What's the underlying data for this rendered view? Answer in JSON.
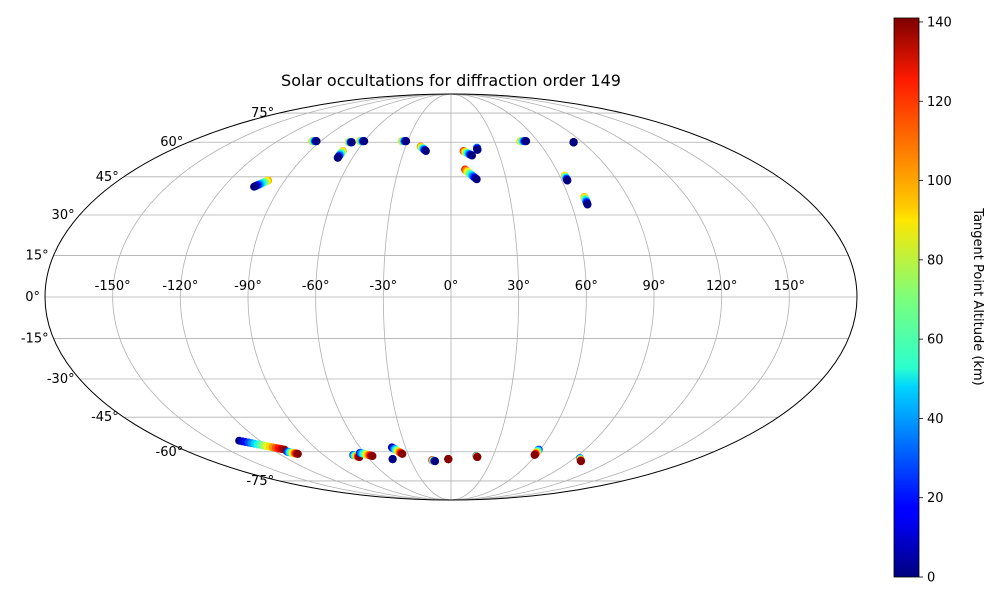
{
  "chart_data": {
    "type": "scatter",
    "projection": "mollweide",
    "title": "Solar occultations for diffraction order 149",
    "xlabel": "",
    "ylabel": "",
    "grid": true,
    "lon_ticks": [
      -150,
      -120,
      -90,
      -60,
      -30,
      0,
      30,
      60,
      90,
      120,
      150
    ],
    "lon_tick_labels": [
      "-150°",
      "-120°",
      "-90°",
      "-60°",
      "-30°",
      "0°",
      "30°",
      "60°",
      "90°",
      "120°",
      "150°"
    ],
    "lat_ticks": [
      -75,
      -60,
      -45,
      -30,
      -15,
      0,
      15,
      30,
      45,
      60,
      75
    ],
    "lat_tick_labels": [
      "-75°",
      "-60°",
      "-45°",
      "-30°",
      "-15°",
      "0°",
      "15°",
      "30°",
      "45°",
      "60°",
      "75°"
    ],
    "colorbar": {
      "label": "Tangent Point Altitude (km)",
      "colormap": "jet",
      "range": [
        0,
        141
      ],
      "ticks": [
        0,
        20,
        40,
        60,
        80,
        100,
        120,
        140
      ],
      "tick_labels": [
        "0",
        "20",
        "40",
        "60",
        "80",
        "100",
        "120",
        "140"
      ]
    },
    "tracks": [
      {
        "lon": [
          -96,
          -93
        ],
        "lat": [
          60.5,
          60.5
        ],
        "alt": [
          100,
          0
        ]
      },
      {
        "lon": [
          -70,
          -68
        ],
        "lat": [
          60,
          60
        ],
        "alt": [
          100,
          0
        ]
      },
      {
        "lon": [
          -69,
          -69
        ],
        "lat": [
          56,
          53
        ],
        "alt": [
          100,
          0
        ]
      },
      {
        "lon": [
          -63,
          -60
        ],
        "lat": [
          60.5,
          60.5
        ],
        "alt": [
          100,
          0
        ]
      },
      {
        "lon": [
          -34,
          -31
        ],
        "lat": [
          60.5,
          60.5
        ],
        "alt": [
          100,
          0
        ]
      },
      {
        "lon": [
          -20,
          -16
        ],
        "lat": [
          58,
          56
        ],
        "alt": [
          110,
          0
        ]
      },
      {
        "lon": [
          8,
          13
        ],
        "lat": [
          56,
          54
        ],
        "alt": [
          120,
          0
        ]
      },
      {
        "lon": [
          17,
          17
        ],
        "lat": [
          57.5,
          56.5
        ],
        "alt": [
          40,
          0
        ]
      },
      {
        "lon": [
          8,
          14
        ],
        "lat": [
          48,
          44
        ],
        "alt": [
          120,
          0
        ]
      },
      {
        "lon": [
          48,
          52
        ],
        "lat": [
          60.5,
          60.5
        ],
        "alt": [
          100,
          0
        ]
      },
      {
        "lon": [
          84,
          84
        ],
        "lat": [
          60,
          60
        ],
        "alt": [
          0,
          0
        ]
      },
      {
        "lon": [
          63,
          63
        ],
        "lat": [
          45.5,
          43.5
        ],
        "alt": [
          100,
          0
        ]
      },
      {
        "lon": [
          68,
          68
        ],
        "lat": [
          37,
          34
        ],
        "alt": [
          100,
          0
        ]
      },
      {
        "lon": [
          -99,
          -104
        ],
        "lat": [
          43.5,
          41
        ],
        "alt": [
          100,
          0
        ]
      },
      {
        "lon": [
          -133,
          -112
        ],
        "lat": [
          -55,
          -59
        ],
        "alt": [
          0,
          140
        ]
      },
      {
        "lon": [
          -112,
          -107
        ],
        "lat": [
          -60,
          -61
        ],
        "alt": [
          20,
          140
        ]
      },
      {
        "lon": [
          -69,
          -66
        ],
        "lat": [
          -61.5,
          -62.5
        ],
        "alt": [
          20,
          140
        ]
      },
      {
        "lon": [
          -63,
          -56
        ],
        "lat": [
          -60.5,
          -62
        ],
        "alt": [
          20,
          140
        ]
      },
      {
        "lon": [
          -43,
          -43
        ],
        "lat": [
          -63.5,
          -63.5
        ],
        "alt": [
          140,
          0
        ]
      },
      {
        "lon": [
          -39,
          -34
        ],
        "lat": [
          -58,
          -61
        ],
        "alt": [
          0,
          140
        ]
      },
      {
        "lon": [
          -14,
          -12
        ],
        "lat": [
          -64,
          -64.5
        ],
        "alt": [
          140,
          0
        ]
      },
      {
        "lon": [
          -2,
          -2
        ],
        "lat": [
          -63.5,
          -63.5
        ],
        "alt": [
          140,
          140
        ]
      },
      {
        "lon": [
          18,
          19
        ],
        "lat": [
          -62,
          -62.5
        ],
        "alt": [
          20,
          140
        ]
      },
      {
        "lon": [
          59,
          59
        ],
        "lat": [
          -59,
          -61.5
        ],
        "alt": [
          20,
          140
        ]
      },
      {
        "lon": [
          94,
          98
        ],
        "lat": [
          -63,
          -64.5
        ],
        "alt": [
          20,
          140
        ]
      }
    ]
  }
}
